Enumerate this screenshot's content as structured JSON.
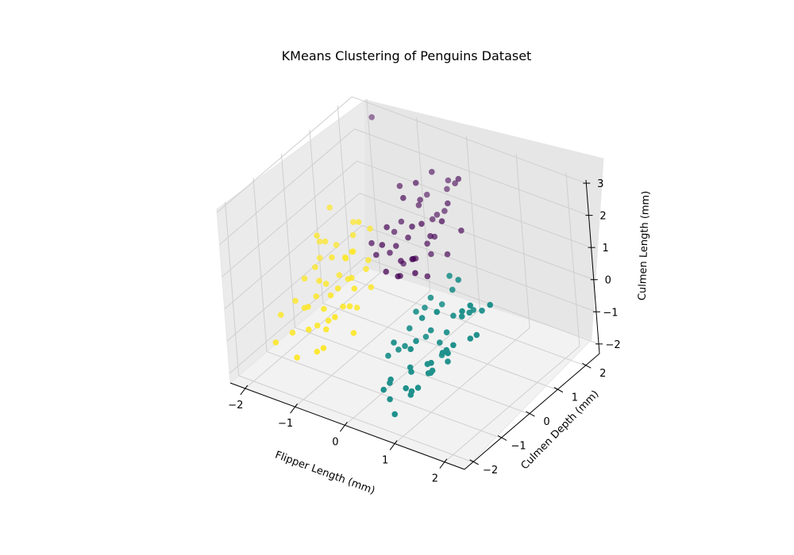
{
  "chart_data": {
    "type": "scatter",
    "projection": "3d",
    "title": "KMeans Clustering of Penguins Dataset",
    "xlabel": "Flipper Length (mm)",
    "ylabel": "Culmen Depth (mm)",
    "zlabel": "Culmen Length (mm)",
    "xlim": [
      -2.3,
      2.4
    ],
    "ylim": [
      -2.3,
      2.5
    ],
    "zlim": [
      -2.3,
      3.1
    ],
    "xticks": [
      "−2",
      "−1",
      "0",
      "1",
      "2"
    ],
    "yticks": [
      "−2",
      "−1",
      "0",
      "1",
      "2"
    ],
    "zticks": [
      "−2",
      "−1",
      "0",
      "1",
      "2",
      "3"
    ],
    "grid": true,
    "legend": false,
    "colors": [
      "#440154",
      "#21918c",
      "#fde725"
    ],
    "series": [
      {
        "color": "#440154",
        "points": [
          [
            -0.6,
            2.0,
            1.3
          ],
          [
            -0.5,
            1.6,
            1.5
          ],
          [
            -0.3,
            1.8,
            1.0
          ],
          [
            -0.8,
            1.4,
            0.8
          ],
          [
            -0.4,
            1.1,
            1.1
          ],
          [
            -0.2,
            1.5,
            0.6
          ],
          [
            -0.7,
            1.0,
            0.4
          ],
          [
            -0.1,
            1.2,
            0.9
          ],
          [
            -0.5,
            0.8,
            0.2
          ],
          [
            0.0,
            1.7,
            1.6
          ],
          [
            -0.9,
            1.3,
            0.5
          ],
          [
            -0.3,
            0.9,
            0.3
          ],
          [
            -0.6,
            1.2,
            1.8
          ],
          [
            -0.2,
            2.1,
            1.9
          ],
          [
            -1.0,
            0.8,
            0.1
          ],
          [
            -0.4,
            1.9,
            2.2
          ],
          [
            0.1,
            1.3,
            1.4
          ],
          [
            -0.7,
            0.6,
            -0.1
          ],
          [
            -0.3,
            1.5,
            0.0
          ],
          [
            -0.5,
            1.1,
            0.7
          ],
          [
            -0.8,
            0.9,
            1.0
          ],
          [
            -0.2,
            0.7,
            0.5
          ],
          [
            0.2,
            1.8,
            2.4
          ],
          [
            -1.2,
            1.0,
            0.2
          ],
          [
            -0.6,
            1.7,
            1.2
          ],
          [
            -0.1,
            1.0,
            -0.2
          ],
          [
            -0.4,
            0.5,
            0.0
          ],
          [
            -0.9,
            1.6,
            1.7
          ],
          [
            0.0,
            2.0,
            2.0
          ],
          [
            -0.3,
            1.4,
            0.4
          ],
          [
            -1.8,
            2.3,
            2.8
          ],
          [
            -0.7,
            1.2,
            -0.3
          ],
          [
            0.3,
            1.6,
            1.0
          ],
          [
            -0.5,
            1.3,
            -0.1
          ],
          [
            -0.2,
            1.1,
            1.3
          ],
          [
            -0.8,
            0.7,
            0.6
          ],
          [
            -0.4,
            1.8,
            0.8
          ],
          [
            -0.1,
            0.6,
            0.2
          ],
          [
            -0.6,
            0.9,
            -0.4
          ],
          [
            -0.3,
            2.2,
            1.5
          ],
          [
            0.1,
            1.4,
            0.3
          ],
          [
            -0.9,
            1.1,
            0.0
          ],
          [
            -0.5,
            1.5,
            2.1
          ],
          [
            -0.2,
            1.9,
            1.1
          ]
        ]
      },
      {
        "color": "#21918c",
        "points": [
          [
            0.8,
            -1.0,
            -0.2
          ],
          [
            1.0,
            -0.8,
            0.1
          ],
          [
            1.2,
            -1.2,
            -0.5
          ],
          [
            0.6,
            -0.6,
            0.3
          ],
          [
            1.5,
            -0.9,
            0.0
          ],
          [
            0.9,
            -1.4,
            -0.8
          ],
          [
            1.3,
            -0.5,
            0.5
          ],
          [
            0.7,
            -1.1,
            -1.0
          ],
          [
            1.1,
            -0.7,
            -0.3
          ],
          [
            1.6,
            -1.3,
            0.2
          ],
          [
            0.5,
            -0.9,
            -0.6
          ],
          [
            1.4,
            -1.5,
            -0.4
          ],
          [
            0.8,
            -0.4,
            0.7
          ],
          [
            1.7,
            -0.6,
            0.9
          ],
          [
            1.0,
            -1.6,
            -1.2
          ],
          [
            0.4,
            -1.3,
            -1.4
          ],
          [
            1.2,
            -0.3,
            1.1
          ],
          [
            1.8,
            -1.0,
            1.3
          ],
          [
            0.6,
            -1.7,
            -1.6
          ],
          [
            1.3,
            -0.8,
            -0.7
          ],
          [
            0.9,
            -0.2,
            0.4
          ],
          [
            1.5,
            -1.1,
            -0.1
          ],
          [
            0.3,
            -0.8,
            -0.9
          ],
          [
            1.1,
            -1.8,
            -1.1
          ],
          [
            2.0,
            -0.9,
            0.6
          ],
          [
            0.7,
            -0.5,
            -0.5
          ],
          [
            1.4,
            -0.4,
            1.6
          ],
          [
            0.5,
            -1.5,
            -1.3
          ],
          [
            1.6,
            -0.7,
            0.8
          ],
          [
            1.0,
            -1.0,
            -0.8
          ],
          [
            2.1,
            -1.2,
            1.8
          ],
          [
            0.8,
            -1.9,
            -1.8
          ],
          [
            1.2,
            -0.6,
            0.0
          ],
          [
            0.4,
            -1.1,
            -0.4
          ],
          [
            1.9,
            -0.5,
            1.0
          ],
          [
            1.3,
            -1.4,
            -0.6
          ],
          [
            0.6,
            -0.3,
            0.2
          ],
          [
            1.7,
            -1.6,
            0.4
          ],
          [
            0.9,
            -0.9,
            0.5
          ],
          [
            1.1,
            -0.2,
            1.4
          ],
          [
            0.2,
            -1.0,
            -1.0
          ],
          [
            1.5,
            -1.8,
            -0.2
          ],
          [
            0.7,
            -1.3,
            -1.5
          ],
          [
            1.8,
            -0.8,
            0.3
          ],
          [
            1.0,
            -0.5,
            -0.9
          ],
          [
            1.4,
            -1.2,
            1.2
          ],
          [
            0.5,
            -0.7,
            -0.2
          ],
          [
            1.2,
            -1.7,
            -0.9
          ],
          [
            2.2,
            -0.7,
            1.5
          ],
          [
            0.8,
            -1.2,
            -0.3
          ],
          [
            1.6,
            -0.3,
            0.7
          ],
          [
            0.3,
            -1.4,
            -1.7
          ]
        ]
      },
      {
        "color": "#fde725",
        "points": [
          [
            -1.2,
            -0.5,
            -0.3
          ],
          [
            -1.0,
            -0.2,
            0.1
          ],
          [
            -1.5,
            -0.8,
            -0.6
          ],
          [
            -0.8,
            -0.4,
            0.4
          ],
          [
            -1.3,
            0.0,
            -0.1
          ],
          [
            -1.7,
            -0.6,
            -0.9
          ],
          [
            -0.9,
            -0.9,
            -0.5
          ],
          [
            -1.1,
            0.2,
            0.6
          ],
          [
            -1.6,
            -0.3,
            0.2
          ],
          [
            -0.7,
            -0.7,
            -0.2
          ],
          [
            -1.4,
            -1.0,
            -1.1
          ],
          [
            -1.2,
            0.4,
            0.9
          ],
          [
            -1.9,
            -0.2,
            -0.4
          ],
          [
            -0.6,
            -0.1,
            0.0
          ],
          [
            -1.0,
            -1.2,
            -1.3
          ],
          [
            -1.5,
            0.3,
            0.5
          ],
          [
            -1.8,
            -0.9,
            -1.5
          ],
          [
            -0.8,
            0.1,
            0.3
          ],
          [
            -1.3,
            -0.6,
            -0.7
          ],
          [
            -2.0,
            -0.4,
            -1.0
          ],
          [
            -1.1,
            -0.8,
            -0.8
          ],
          [
            -0.9,
            0.5,
            1.2
          ],
          [
            -1.6,
            0.1,
            0.7
          ],
          [
            -1.4,
            -0.3,
            -0.2
          ],
          [
            -0.7,
            -0.5,
            0.2
          ],
          [
            -1.7,
            0.5,
            1.4
          ],
          [
            -1.2,
            -1.1,
            -1.6
          ],
          [
            -1.0,
            0.0,
            0.8
          ],
          [
            -1.5,
            -0.5,
            -0.5
          ],
          [
            -2.1,
            -1.0,
            -1.9
          ],
          [
            -0.8,
            -0.3,
            -0.6
          ],
          [
            -1.3,
            0.6,
            1.1
          ],
          [
            -1.8,
            0.2,
            0.0
          ],
          [
            -1.1,
            -0.4,
            -0.1
          ],
          [
            -0.6,
            -0.8,
            -0.9
          ],
          [
            -1.4,
            -0.7,
            -1.2
          ],
          [
            -1.9,
            0.4,
            0.3
          ],
          [
            -1.0,
            0.3,
            1.5
          ],
          [
            -1.6,
            -0.2,
            -0.3
          ],
          [
            -1.2,
            0.1,
            0.4
          ],
          [
            -0.9,
            -0.6,
            -0.4
          ],
          [
            -1.5,
            -1.3,
            -1.8
          ],
          [
            -1.7,
            0.0,
            0.9
          ],
          [
            -1.3,
            -0.2,
            0.6
          ],
          [
            -2.2,
            -0.6,
            -1.4
          ],
          [
            -0.8,
            0.2,
            0.5
          ],
          [
            -1.1,
            -0.9,
            -1.0
          ],
          [
            -1.4,
            0.4,
            0.1
          ]
        ]
      }
    ]
  }
}
